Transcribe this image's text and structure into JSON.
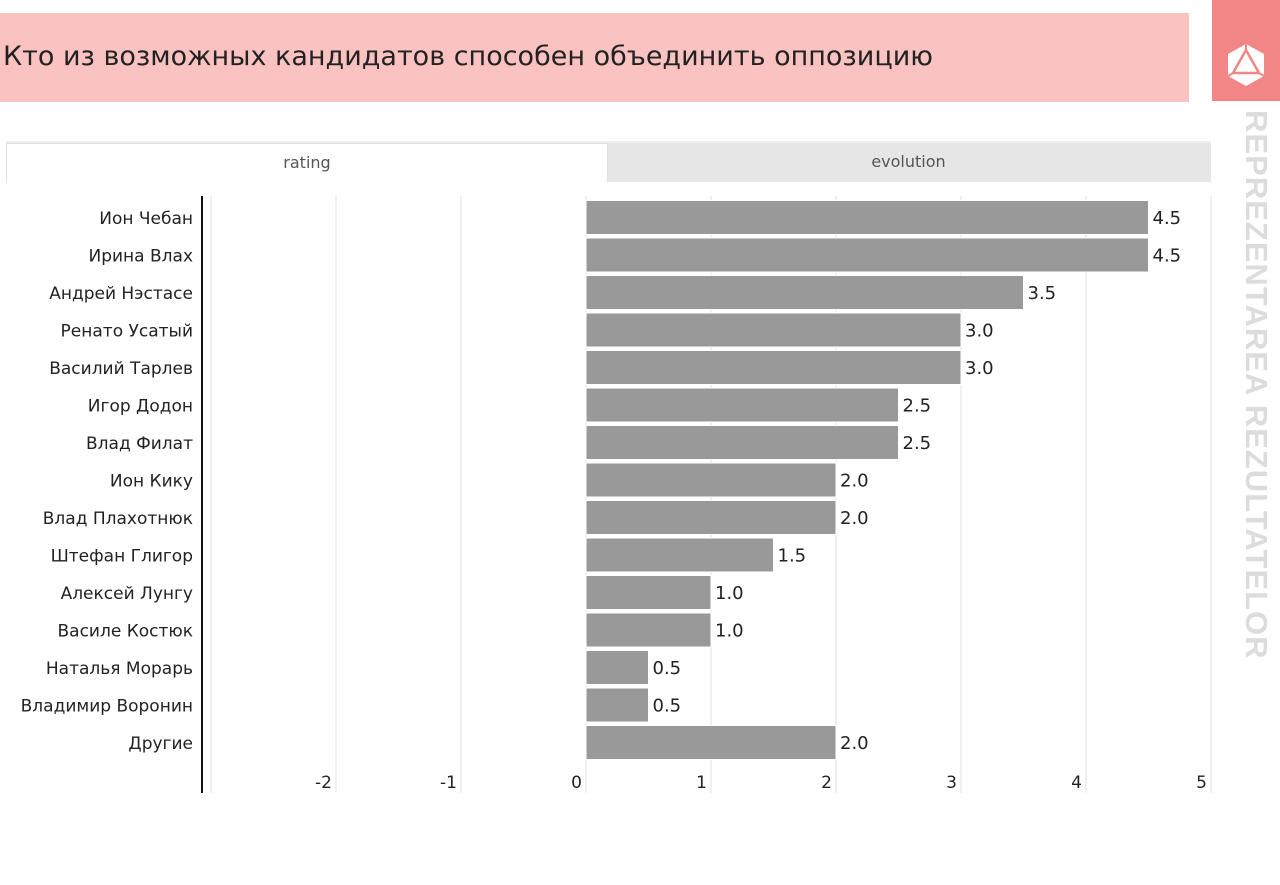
{
  "header": {
    "title": "Кто из возможных кандидатов способен объединить оппозицию",
    "brand": "REPREZENTAREA REZULTATELOR"
  },
  "tabs": [
    {
      "label": "rating",
      "active": true
    },
    {
      "label": "evolution",
      "active": false
    }
  ],
  "colors": {
    "bar": "#999999",
    "header": "#fbc2c2",
    "logo": "#f28585"
  },
  "chart_data": {
    "type": "bar",
    "orientation": "horizontal",
    "categories": [
      "Ион Чебан",
      "Ирина Влах",
      "Андрей Нэстасе",
      "Ренато Усатый",
      "Василий Тарлев",
      "Игор Додон",
      "Влад Филат",
      "Ион Кику",
      "Влад Плахотнюк",
      "Штефан Глигор",
      "Алексей Лунгу",
      "Василе Костюк",
      "Наталья Морарь",
      "Владимир Воронин",
      "Другие"
    ],
    "values": [
      4.5,
      4.5,
      3.5,
      3.0,
      3.0,
      2.5,
      2.5,
      2.0,
      2.0,
      1.5,
      1.0,
      1.0,
      0.5,
      0.5,
      2.0
    ],
    "labels": [
      "4.5",
      "4.5",
      "3.5",
      "3.0",
      "3.0",
      "2.5",
      "2.5",
      "2.0",
      "2.0",
      "1.5",
      "1.0",
      "1.0",
      "0.5",
      "0.5",
      "2.0"
    ],
    "xlim": [
      -3,
      5
    ],
    "xticks": [
      "-2",
      "-1",
      "0",
      "1",
      "2",
      "3",
      "4",
      "5"
    ],
    "xtick_values": [
      -2,
      -1,
      0,
      1,
      2,
      3,
      4,
      5
    ],
    "grid": true
  }
}
